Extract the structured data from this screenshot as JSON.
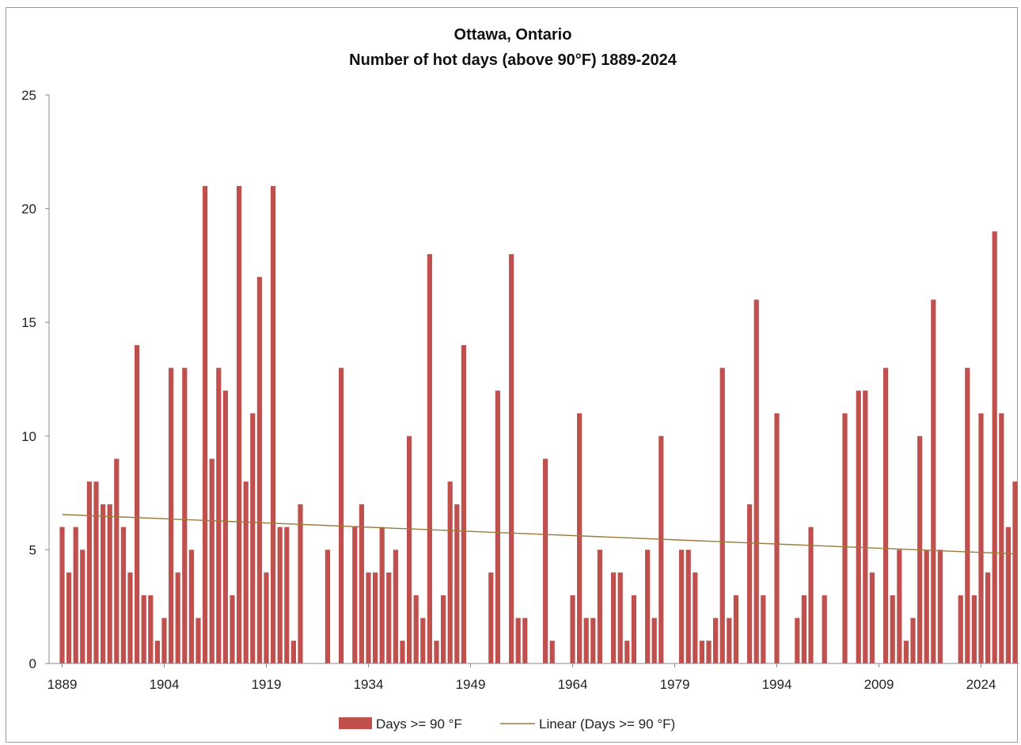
{
  "chart_data": {
    "type": "bar",
    "title": "Ottawa, Ontario",
    "subtitle": "Number of hot days (above 90°F) 1889-2024",
    "xlabel": "",
    "ylabel": "",
    "ylim": [
      0,
      25
    ],
    "yticks": [
      0,
      5,
      10,
      15,
      20,
      25
    ],
    "xticks": [
      1889,
      1904,
      1919,
      1934,
      1949,
      1964,
      1979,
      1994,
      2009,
      2024
    ],
    "x_start": 1889,
    "grid": false,
    "legend_position": "bottom",
    "bar_color": "#c0504d",
    "trend_color": "#9c7a3a",
    "series": [
      {
        "name": "Days >= 90 °F",
        "values": [
          6,
          4,
          6,
          5,
          8,
          8,
          7,
          7,
          9,
          6,
          4,
          14,
          3,
          3,
          1,
          2,
          13,
          4,
          13,
          5,
          2,
          21,
          9,
          13,
          12,
          3,
          21,
          8,
          11,
          17,
          4,
          21,
          6,
          6,
          1,
          7,
          0,
          0,
          0,
          5,
          0,
          13,
          0,
          6,
          7,
          4,
          4,
          6,
          4,
          5,
          1,
          10,
          3,
          2,
          18,
          1,
          3,
          8,
          7,
          14,
          0,
          0,
          0,
          4,
          12,
          0,
          18,
          2,
          2,
          0,
          0,
          9,
          1,
          0,
          0,
          3,
          11,
          2,
          2,
          5,
          0,
          4,
          4,
          1,
          3,
          0,
          5,
          2,
          10,
          0,
          0,
          5,
          5,
          4,
          1,
          1,
          2,
          13,
          2,
          3,
          0,
          7,
          16,
          3,
          0,
          11,
          0,
          0,
          2,
          3,
          6,
          0,
          3,
          0,
          0,
          11,
          0,
          12,
          12,
          4,
          0,
          13,
          3,
          5,
          1,
          2,
          10,
          5,
          16,
          5,
          0,
          0,
          3,
          13,
          3,
          11,
          4,
          19,
          11,
          6,
          8
        ]
      },
      {
        "name": "Linear (Days >= 90 °F)",
        "trend": true,
        "start": 6.55,
        "end": 4.82
      }
    ]
  }
}
